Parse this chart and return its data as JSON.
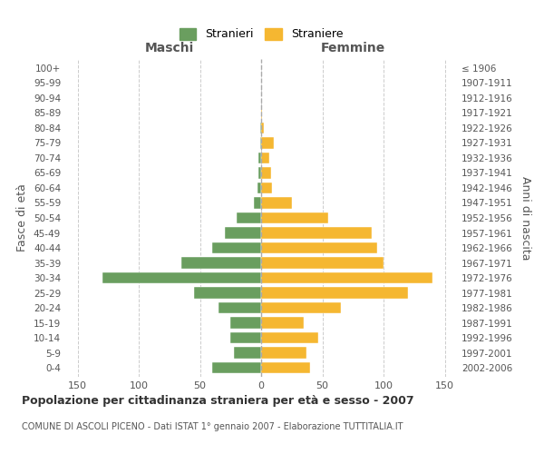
{
  "age_groups": [
    "0-4",
    "5-9",
    "10-14",
    "15-19",
    "20-24",
    "25-29",
    "30-34",
    "35-39",
    "40-44",
    "45-49",
    "50-54",
    "55-59",
    "60-64",
    "65-69",
    "70-74",
    "75-79",
    "80-84",
    "85-89",
    "90-94",
    "95-99",
    "100+"
  ],
  "birth_years": [
    "2002-2006",
    "1997-2001",
    "1992-1996",
    "1987-1991",
    "1982-1986",
    "1977-1981",
    "1972-1976",
    "1967-1971",
    "1962-1966",
    "1957-1961",
    "1952-1956",
    "1947-1951",
    "1942-1946",
    "1937-1941",
    "1932-1936",
    "1927-1931",
    "1922-1926",
    "1917-1921",
    "1912-1916",
    "1907-1911",
    "≤ 1906"
  ],
  "maschi": [
    40,
    22,
    25,
    25,
    35,
    55,
    130,
    65,
    40,
    30,
    20,
    6,
    3,
    2,
    2,
    1,
    1,
    0,
    0,
    0,
    0
  ],
  "femmine": [
    40,
    37,
    47,
    35,
    65,
    120,
    140,
    100,
    95,
    90,
    55,
    25,
    9,
    8,
    7,
    10,
    2,
    1,
    0,
    0,
    0
  ],
  "maschi_color": "#6a9e5f",
  "femmine_color": "#f5b731",
  "background_color": "#ffffff",
  "grid_color": "#cccccc",
  "title": "Popolazione per cittadinanza straniera per età e sesso - 2007",
  "subtitle": "COMUNE DI ASCOLI PICENO - Dati ISTAT 1° gennaio 2007 - Elaborazione TUTTITALIA.IT",
  "ylabel_left": "Fasce di età",
  "ylabel_right": "Anni di nascita",
  "xlabel_left": "Maschi",
  "xlabel_right": "Femmine",
  "legend_maschi": "Stranieri",
  "legend_femmine": "Straniere",
  "xlim": 160
}
